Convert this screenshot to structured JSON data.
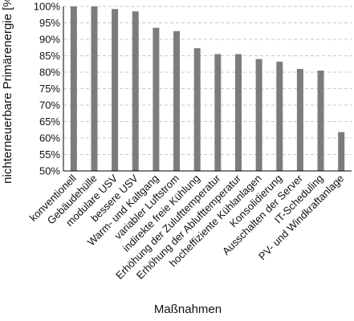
{
  "chart_data": {
    "type": "bar",
    "title": "",
    "xlabel": "Maßnahmen",
    "ylabel": "nichterneuerbare Primärenergie [%]",
    "ylim": [
      50,
      100
    ],
    "yticks": [
      50,
      55,
      60,
      65,
      70,
      75,
      80,
      85,
      90,
      95,
      100
    ],
    "ytick_labels": [
      "50%",
      "55%",
      "60%",
      "65%",
      "70%",
      "75%",
      "80%",
      "85%",
      "90%",
      "95%",
      "100%"
    ],
    "grid": "horizontal dashed",
    "bar_color": "#7f7a7b",
    "categories": [
      "konventionell",
      "Gebäudehülle",
      "modulare USV",
      "bessere USV",
      "Warm- und Kaltgang",
      "variabler Luftstrom",
      "indirekte freie Kühlung",
      "Erhöhung der Zulufttemperatur",
      "Erhöhung der Ablufttemperatur",
      "hocheffiziente Kühlanlagen",
      "Konsolidierung",
      "Ausschalten der Server",
      "IT-Scheduling",
      "PV- und Windkraftanlage"
    ],
    "values": [
      100,
      100,
      99.2,
      98.5,
      93.5,
      92.5,
      87.3,
      85.5,
      85.5,
      84.0,
      83.2,
      81.0,
      80.5,
      61.8
    ]
  }
}
